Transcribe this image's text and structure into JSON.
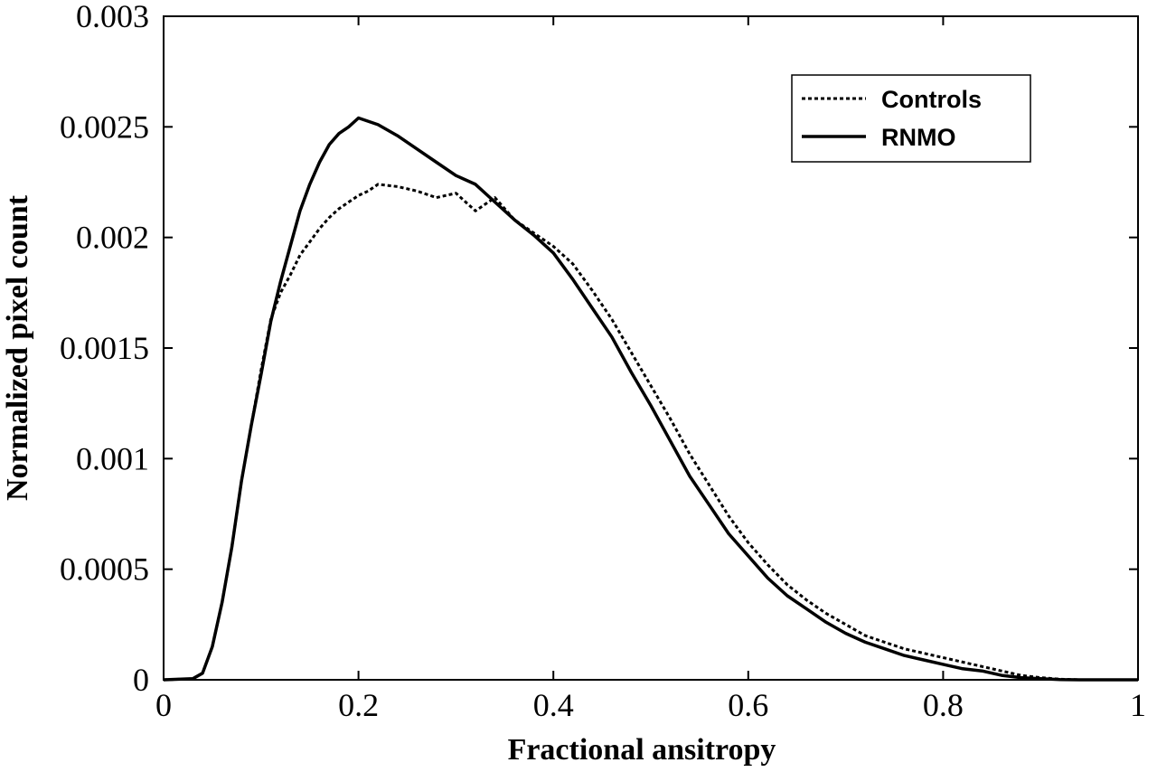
{
  "chart_data": {
    "type": "line",
    "title": "",
    "xlabel": "Fractional ansitropy",
    "ylabel": "Normalized pixel count",
    "xlim": [
      0,
      1
    ],
    "ylim": [
      0,
      0.003
    ],
    "x_ticks": [
      0,
      0.2,
      0.4,
      0.6,
      0.8,
      1
    ],
    "x_tick_labels": [
      "0",
      "0.2",
      "0.4",
      "0.6",
      "0.8",
      "1"
    ],
    "y_ticks": [
      0,
      0.0005,
      0.001,
      0.0015,
      0.002,
      0.0025,
      0.003
    ],
    "y_tick_labels": [
      "0",
      "0.0005",
      "0.001",
      "0.0015",
      "0.002",
      "0.0025",
      "0.003"
    ],
    "grid": false,
    "legend_position": "top-right",
    "series": [
      {
        "name": "Controls",
        "style": "dotted",
        "color": "#000000",
        "x": [
          0,
          0.03,
          0.04,
          0.05,
          0.06,
          0.07,
          0.08,
          0.09,
          0.1,
          0.11,
          0.12,
          0.13,
          0.14,
          0.15,
          0.16,
          0.17,
          0.18,
          0.19,
          0.2,
          0.21,
          0.22,
          0.24,
          0.26,
          0.28,
          0.3,
          0.32,
          0.34,
          0.36,
          0.38,
          0.4,
          0.42,
          0.44,
          0.46,
          0.48,
          0.5,
          0.52,
          0.54,
          0.56,
          0.58,
          0.6,
          0.62,
          0.64,
          0.66,
          0.68,
          0.7,
          0.72,
          0.74,
          0.76,
          0.78,
          0.8,
          0.82,
          0.84,
          0.86,
          0.88,
          0.9,
          0.92,
          0.94,
          1
        ],
        "y": [
          0,
          5e-06,
          3e-05,
          0.00015,
          0.00035,
          0.0006,
          0.0009,
          0.00115,
          0.0014,
          0.00163,
          0.00175,
          0.00183,
          0.00192,
          0.00198,
          0.00204,
          0.00209,
          0.00213,
          0.00216,
          0.00219,
          0.00221,
          0.00224,
          0.00223,
          0.00221,
          0.00218,
          0.0022,
          0.00212,
          0.00218,
          0.00208,
          0.00202,
          0.00196,
          0.00188,
          0.00176,
          0.00163,
          0.00148,
          0.00133,
          0.00118,
          0.00102,
          0.00088,
          0.00074,
          0.00062,
          0.00052,
          0.00043,
          0.00036,
          0.0003,
          0.00025,
          0.0002,
          0.00017,
          0.00014,
          0.00012,
          0.0001,
          8e-05,
          6e-05,
          4e-05,
          2e-05,
          1e-05,
          3e-06,
          0,
          0
        ]
      },
      {
        "name": "RNMO",
        "style": "solid",
        "color": "#000000",
        "x": [
          0,
          0.03,
          0.04,
          0.05,
          0.06,
          0.07,
          0.08,
          0.09,
          0.1,
          0.11,
          0.12,
          0.13,
          0.14,
          0.15,
          0.16,
          0.17,
          0.18,
          0.19,
          0.2,
          0.22,
          0.24,
          0.26,
          0.28,
          0.3,
          0.32,
          0.34,
          0.36,
          0.38,
          0.4,
          0.42,
          0.44,
          0.46,
          0.48,
          0.5,
          0.52,
          0.54,
          0.56,
          0.58,
          0.6,
          0.62,
          0.64,
          0.66,
          0.68,
          0.7,
          0.72,
          0.74,
          0.76,
          0.78,
          0.8,
          0.82,
          0.84,
          0.86,
          0.88,
          0.9,
          0.92,
          0.94,
          1
        ],
        "y": [
          0,
          5e-06,
          3e-05,
          0.00015,
          0.00035,
          0.0006,
          0.0009,
          0.00115,
          0.00138,
          0.00162,
          0.0018,
          0.00196,
          0.00212,
          0.00224,
          0.00234,
          0.00242,
          0.00247,
          0.0025,
          0.00254,
          0.00251,
          0.00246,
          0.0024,
          0.00234,
          0.00228,
          0.00224,
          0.00216,
          0.00208,
          0.00201,
          0.00193,
          0.00181,
          0.00168,
          0.00155,
          0.00139,
          0.00124,
          0.00108,
          0.00092,
          0.00079,
          0.00066,
          0.00056,
          0.00046,
          0.00038,
          0.00032,
          0.00026,
          0.00021,
          0.00017,
          0.00014,
          0.00011,
          9e-05,
          7e-05,
          5e-05,
          4e-05,
          2e-05,
          1e-05,
          5e-06,
          1e-06,
          0,
          0
        ]
      }
    ]
  }
}
